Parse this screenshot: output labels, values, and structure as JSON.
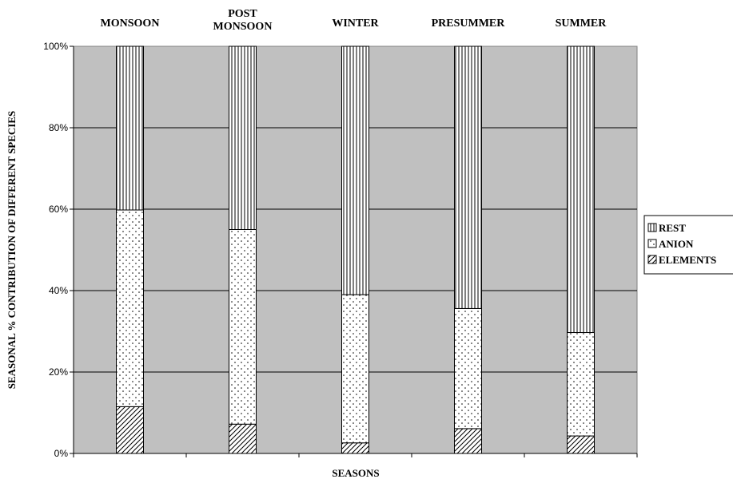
{
  "chart_data": {
    "type": "bar",
    "stacked": true,
    "percent_stacked": true,
    "categories": [
      "MONSOON",
      "POST MONSOON",
      "WINTER",
      "PRESUMMER",
      "SUMMER"
    ],
    "category_label_lines": [
      [
        "MONSOON"
      ],
      [
        "POST",
        "MONSOON"
      ],
      [
        "WINTER"
      ],
      [
        "PRESUMMER"
      ],
      [
        "SUMMER"
      ]
    ],
    "series": [
      {
        "name": "ELEMENTS",
        "values": [
          11.5,
          7.2,
          2.6,
          6.1,
          4.3
        ],
        "pattern": "diagonal-hatch"
      },
      {
        "name": "ANION",
        "values": [
          48.3,
          47.8,
          36.4,
          29.5,
          25.4
        ],
        "pattern": "dots"
      },
      {
        "name": "REST",
        "values": [
          40.2,
          45.0,
          61.0,
          64.4,
          70.3
        ],
        "pattern": "vertical-lines"
      }
    ],
    "legend_order": [
      "REST",
      "ANION",
      "ELEMENTS"
    ],
    "legend_position": "right",
    "xlabel": "SEASONS",
    "ylabel": "SEASONAL % CONTRIBUTION OF DIFFERENT SPECIES",
    "y_ticks": [
      "0%",
      "20%",
      "40%",
      "60%",
      "80%",
      "100%"
    ],
    "ylim": [
      0,
      100
    ],
    "grid": true,
    "category_labels_position": "top",
    "colors": {
      "plot_background": "#c0c0c0",
      "bar_fill": "#ffffff",
      "stroke": "#000000"
    }
  }
}
